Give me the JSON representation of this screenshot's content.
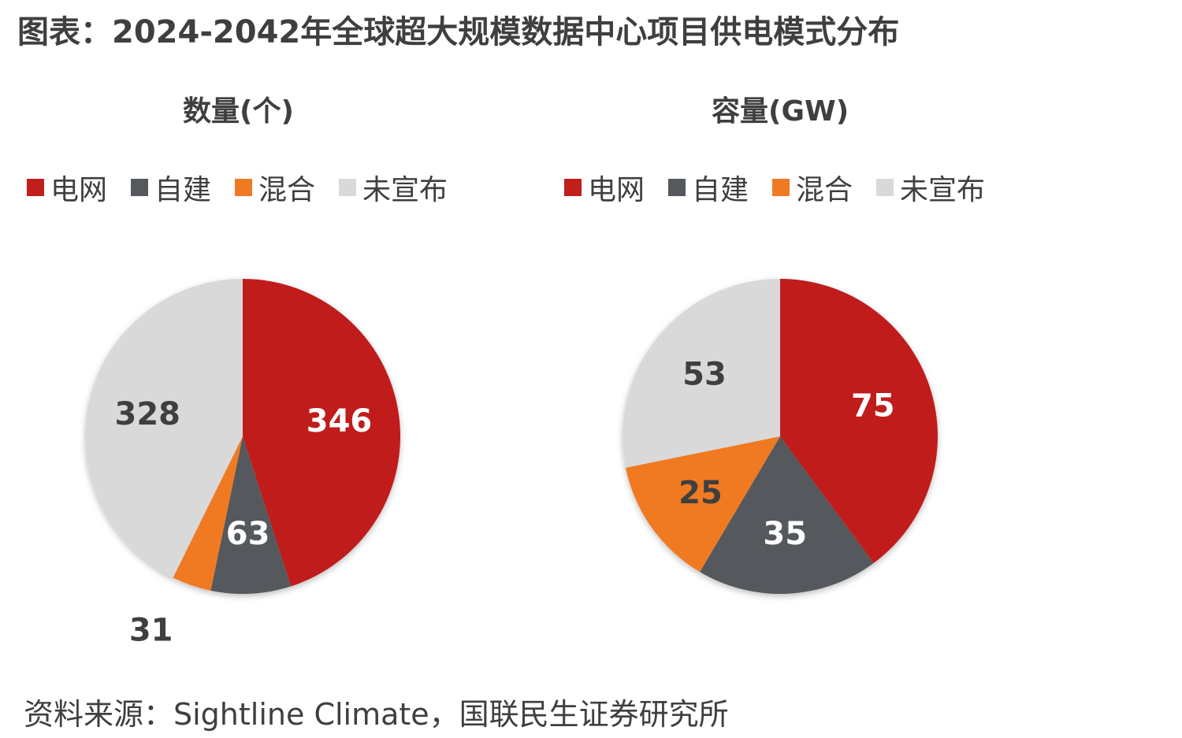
{
  "title": "图表：2024-2042年全球超大规模数据中心项目供电模式分布",
  "source": "资料来源：Sightline Climate，国联民生证券研究所",
  "colors": {
    "grid": "#c01f1c",
    "self": "#55585c",
    "hybrid": "#f07a24",
    "unannounced": "#d9d9d9"
  },
  "chart_data": [
    {
      "type": "pie",
      "title": "数量(个)",
      "categories": [
        "电网",
        "自建",
        "混合",
        "未宣布"
      ],
      "values": [
        346,
        63,
        31,
        328
      ]
    },
    {
      "type": "pie",
      "title": "容量(GW)",
      "categories": [
        "电网",
        "自建",
        "混合",
        "未宣布"
      ],
      "values": [
        75,
        35,
        25,
        53
      ]
    }
  ]
}
